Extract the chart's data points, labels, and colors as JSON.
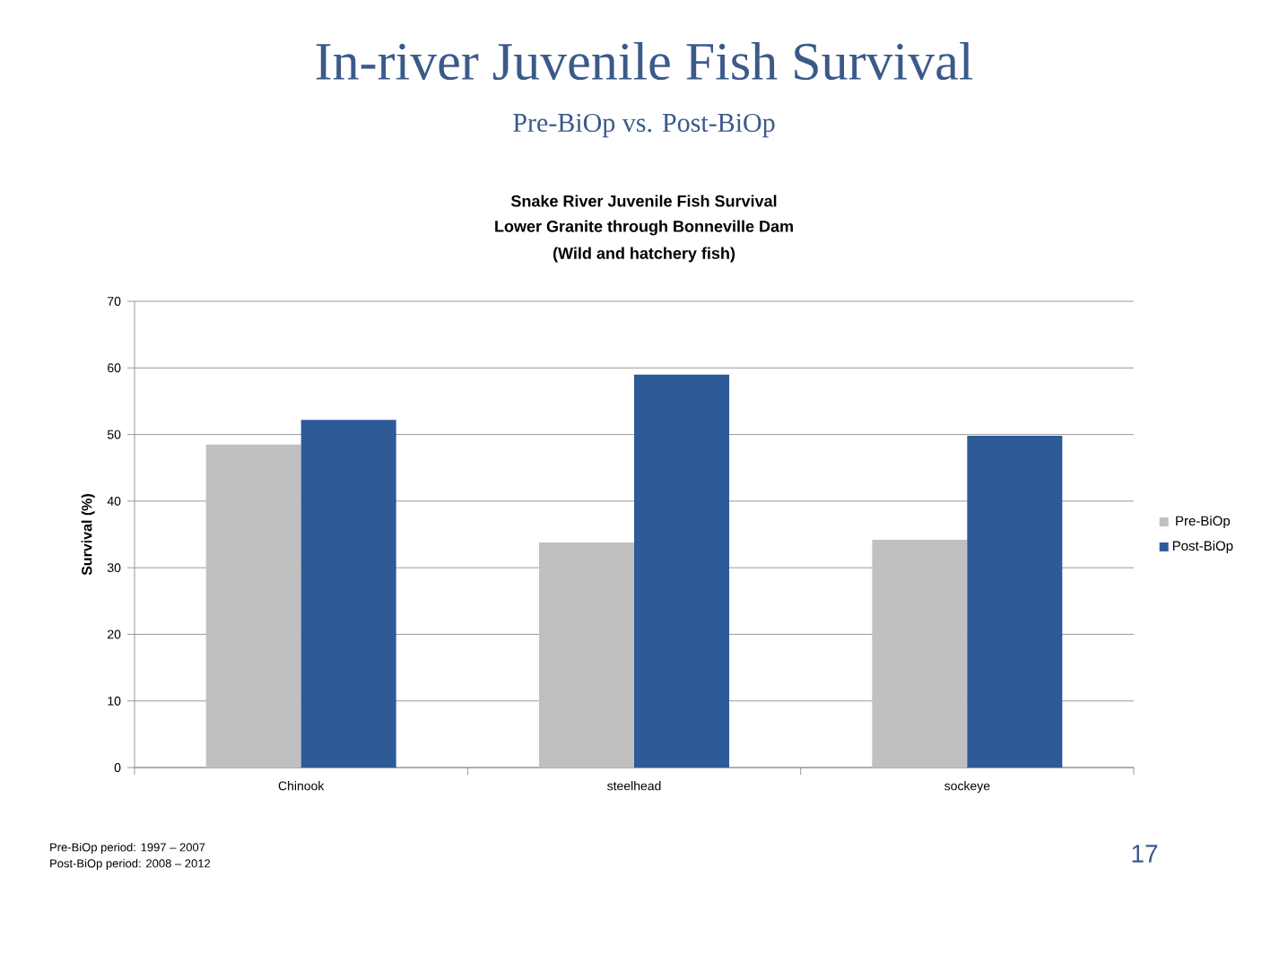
{
  "chart_data": {
    "type": "bar",
    "title": "In-river Juvenile Fish Survival",
    "subtitle": "Pre-BiOp vs. Post-BiOp",
    "ylabel": "Survival (%)",
    "annotations": [
      "Snake River Juvenile Fish Survival",
      "Lower Granite through Bonneville Dam",
      "(Wild and hatchery fish)",
      "Pre-BiOp period: 1997 – 2007",
      "Post-BiOp period: 2008 – 2012",
      "17"
    ],
    "categories": [
      "Chinook",
      "steelhead",
      "sockeye"
    ],
    "series": [
      {
        "name": "Pre-BiOp",
        "color": "#c0c0c0",
        "values": [
          48.5,
          33.8,
          34.2
        ]
      },
      {
        "name": "Post-BiOp",
        "color": "#2e5a98",
        "values": [
          52.2,
          59.0,
          49.8
        ]
      }
    ],
    "ylim": [
      0,
      70
    ],
    "yticks": [
      0,
      10,
      20,
      30,
      40,
      50,
      60,
      70
    ],
    "grid": "y",
    "legend": "right"
  }
}
